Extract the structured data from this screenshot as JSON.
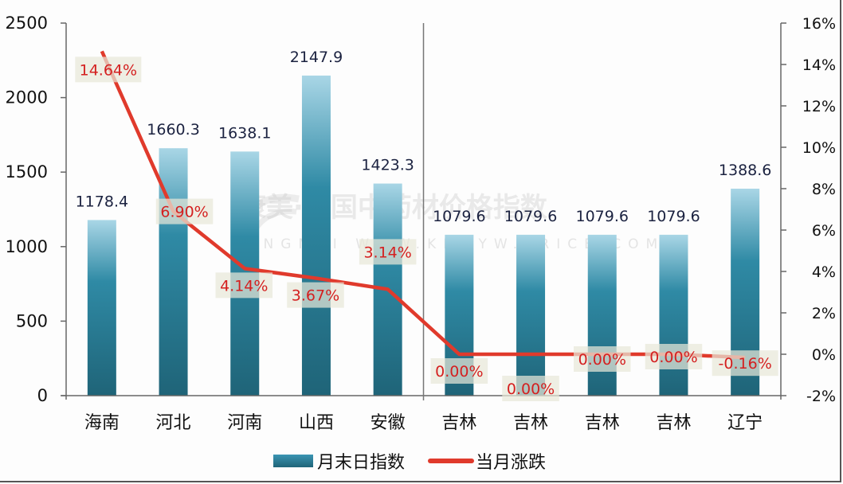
{
  "chart_data": {
    "type": "bar+line",
    "title": "",
    "categories": [
      "海南",
      "河北",
      "河南",
      "山西",
      "安徽",
      "吉林",
      "吉林",
      "吉林",
      "吉林",
      "辽宁"
    ],
    "series": [
      {
        "name": "月末日指数",
        "type": "bar",
        "axis": "left",
        "color": "#2a7f98",
        "values": [
          1178.4,
          1660.3,
          1638.1,
          2147.9,
          1423.3,
          1079.6,
          1079.6,
          1079.6,
          1079.6,
          1388.6
        ],
        "labels": [
          "1178.4",
          "1660.3",
          "1638.1",
          "2147.9",
          "1423.3",
          "1079.6",
          "1079.6",
          "1079.6",
          "1079.6",
          "1388.6"
        ]
      },
      {
        "name": "当月涨跌",
        "type": "line",
        "axis": "right",
        "color": "#e03a2c",
        "values": [
          14.64,
          6.9,
          4.14,
          3.67,
          3.14,
          0.0,
          0.0,
          0.0,
          0.0,
          -0.16
        ],
        "labels": [
          "14.64%",
          "6.90%",
          "4.14%",
          "3.67%",
          "3.14%",
          "0.00%",
          "0.00%",
          "0.00%",
          "0.00%",
          "-0.16%"
        ]
      }
    ],
    "y_left": {
      "ylim": [
        0,
        2500
      ],
      "ticks": [
        "0",
        "500",
        "1000",
        "1500",
        "2000",
        "2500"
      ]
    },
    "y_right": {
      "ylim": [
        -2,
        16
      ],
      "ticks": [
        "-2%",
        "0%",
        "2%",
        "4%",
        "6%",
        "8%",
        "10%",
        "12%",
        "14%",
        "16%"
      ]
    },
    "xlabel": "",
    "ylabel": "",
    "grid": false,
    "legend_position": "bottom",
    "divider_after_index": 4
  },
  "legend": {
    "bar_label": "月末日指数",
    "line_label": "当月涨跌"
  },
  "watermark": {
    "line1": "康美·中国中药材价格指数",
    "line2": "KANGMEI WWW.KMZYW.PRICE.COM"
  }
}
